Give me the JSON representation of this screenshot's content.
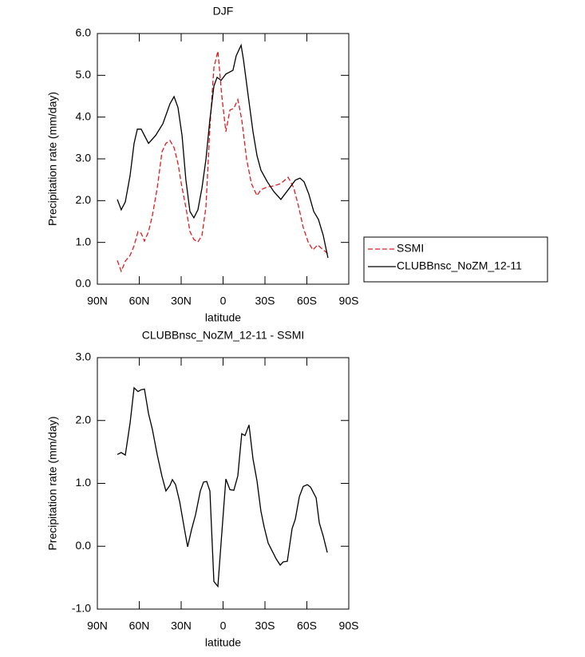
{
  "chart_data": [
    {
      "type": "line",
      "title": "DJF",
      "xlabel": "latitude",
      "ylabel": "Precipitation rate (mm/day)",
      "xlim": [
        90,
        -90
      ],
      "xticks": [
        {
          "value": 90,
          "label": "90N"
        },
        {
          "value": 60,
          "label": "60N"
        },
        {
          "value": 30,
          "label": "30N"
        },
        0,
        {
          "value": -30,
          "label": "30S"
        },
        {
          "value": -60,
          "label": "60S"
        },
        {
          "value": -90,
          "label": "90S"
        }
      ],
      "ylim": [
        0,
        6
      ],
      "yticks": [
        {
          "value": 0,
          "label": "0.0"
        },
        {
          "value": 1,
          "label": "1.0"
        },
        {
          "value": 2,
          "label": "2.0"
        },
        {
          "value": 3,
          "label": "3.0"
        },
        {
          "value": 4,
          "label": "4.0"
        },
        {
          "value": 5,
          "label": "5.0"
        },
        {
          "value": 6,
          "label": "6.0"
        }
      ],
      "legend": "right",
      "series": [
        {
          "name": "SSMI",
          "color": "#e8191b",
          "dashed": true,
          "x": [
            75.7,
            72.9,
            70.0,
            66.6,
            63.7,
            60.9,
            58.6,
            56.3,
            53.4,
            50.6,
            47.1,
            43.7,
            40.9,
            38.0,
            35.1,
            32.3,
            29.4,
            26.6,
            23.7,
            20.9,
            18.0,
            15.1,
            12.3,
            9.4,
            6.6,
            3.7,
            0.9,
            -2.0,
            -4.9,
            -7.7,
            -10.6,
            -13.4,
            -16.9,
            -20.3,
            -24.3,
            -27.1,
            -31.7,
            -36.3,
            -41.4,
            -46.6,
            -50.6,
            -54.0,
            -57.4,
            -60.9,
            -64.3,
            -67.7,
            -71.1,
            -75.1
          ],
          "values": [
            0.57,
            0.31,
            0.55,
            0.69,
            0.92,
            1.26,
            1.22,
            1.03,
            1.26,
            1.64,
            2.31,
            3.17,
            3.37,
            3.44,
            3.27,
            2.89,
            2.31,
            1.84,
            1.26,
            1.07,
            1.01,
            1.17,
            1.84,
            3.75,
            5.18,
            5.58,
            4.51,
            3.65,
            4.17,
            4.21,
            4.42,
            3.94,
            2.98,
            2.41,
            2.12,
            2.26,
            2.33,
            2.35,
            2.41,
            2.56,
            2.31,
            1.87,
            1.36,
            1.01,
            0.82,
            0.94,
            0.84,
            0.73
          ]
        },
        {
          "name": "CLUBBnsc_NoZM_12-11",
          "color": "#000000",
          "dashed": false,
          "x": [
            75.7,
            72.9,
            70.0,
            66.6,
            63.7,
            61.4,
            58.6,
            53.4,
            48.3,
            43.1,
            38.0,
            35.1,
            32.3,
            29.4,
            26.6,
            23.7,
            20.9,
            18.0,
            15.1,
            12.3,
            9.4,
            6.6,
            4.3,
            1.4,
            -2.0,
            -7.1,
            -9.4,
            -12.9,
            -14.6,
            -18.0,
            -21.4,
            -24.3,
            -27.1,
            -31.7,
            -36.3,
            -41.4,
            -47.1,
            -51.7,
            -55.1,
            -58.0,
            -61.4,
            -64.9,
            -68.3,
            -71.7,
            -75.1
          ],
          "values": [
            2.03,
            1.78,
            1.97,
            2.6,
            3.37,
            3.71,
            3.71,
            3.37,
            3.56,
            3.84,
            4.32,
            4.49,
            4.23,
            3.56,
            2.5,
            1.74,
            1.59,
            1.78,
            2.31,
            2.98,
            3.94,
            4.74,
            4.95,
            4.88,
            5.03,
            5.12,
            5.47,
            5.72,
            5.37,
            4.51,
            3.65,
            3.08,
            2.73,
            2.45,
            2.22,
            2.03,
            2.28,
            2.49,
            2.54,
            2.45,
            2.16,
            1.74,
            1.55,
            1.17,
            0.63
          ]
        }
      ]
    },
    {
      "type": "line",
      "title": "CLUBBnsc_NoZM_12-11 - SSMI",
      "xlabel": "latitude",
      "ylabel": "Precipitation rate (mm/day)",
      "xlim": [
        90,
        -90
      ],
      "xticks": [
        {
          "value": 90,
          "label": "90N"
        },
        {
          "value": 60,
          "label": "60N"
        },
        {
          "value": 30,
          "label": "30N"
        },
        0,
        {
          "value": -30,
          "label": "30S"
        },
        {
          "value": -60,
          "label": "60S"
        },
        {
          "value": -90,
          "label": "90S"
        }
      ],
      "ylim": [
        -1,
        3
      ],
      "yticks": [
        {
          "value": -1,
          "label": "-1.0"
        },
        {
          "value": 0,
          "label": "0.0"
        },
        {
          "value": 1,
          "label": "1.0"
        },
        {
          "value": 2,
          "label": "2.0"
        },
        {
          "value": 3,
          "label": "3.0"
        }
      ],
      "series": [
        {
          "color": "#000000",
          "dashed": false,
          "x": [
            75.7,
            72.9,
            70.0,
            66.6,
            63.7,
            60.9,
            58.6,
            56.3,
            53.4,
            50.6,
            47.1,
            43.7,
            40.9,
            38.0,
            36.3,
            34.0,
            31.1,
            27.7,
            25.4,
            22.6,
            19.7,
            16.3,
            14.0,
            11.7,
            9.4,
            6.6,
            3.7,
            1.4,
            -2.0,
            -4.9,
            -7.7,
            -10.6,
            -13.4,
            -15.7,
            -18.6,
            -21.4,
            -24.3,
            -27.1,
            -29.4,
            -32.3,
            -34.6,
            -38.0,
            -40.9,
            -43.1,
            -46.0,
            -49.4,
            -51.7,
            -54.6,
            -57.4,
            -60.3,
            -62.6,
            -66.6,
            -68.9,
            -71.7,
            -74.6
          ],
          "values": [
            1.46,
            1.49,
            1.45,
            1.96,
            2.52,
            2.46,
            2.49,
            2.5,
            2.11,
            1.86,
            1.45,
            1.11,
            0.88,
            0.97,
            1.06,
            0.98,
            0.71,
            0.28,
            -0.01,
            0.26,
            0.5,
            0.88,
            1.02,
            1.03,
            0.88,
            -0.56,
            -0.64,
            0.05,
            1.07,
            0.9,
            0.89,
            1.12,
            1.79,
            1.76,
            1.93,
            1.39,
            1.04,
            0.56,
            0.31,
            0.05,
            -0.05,
            -0.2,
            -0.3,
            -0.25,
            -0.24,
            0.28,
            0.43,
            0.79,
            0.95,
            0.98,
            0.94,
            0.77,
            0.37,
            0.16,
            -0.1
          ]
        }
      ]
    }
  ]
}
